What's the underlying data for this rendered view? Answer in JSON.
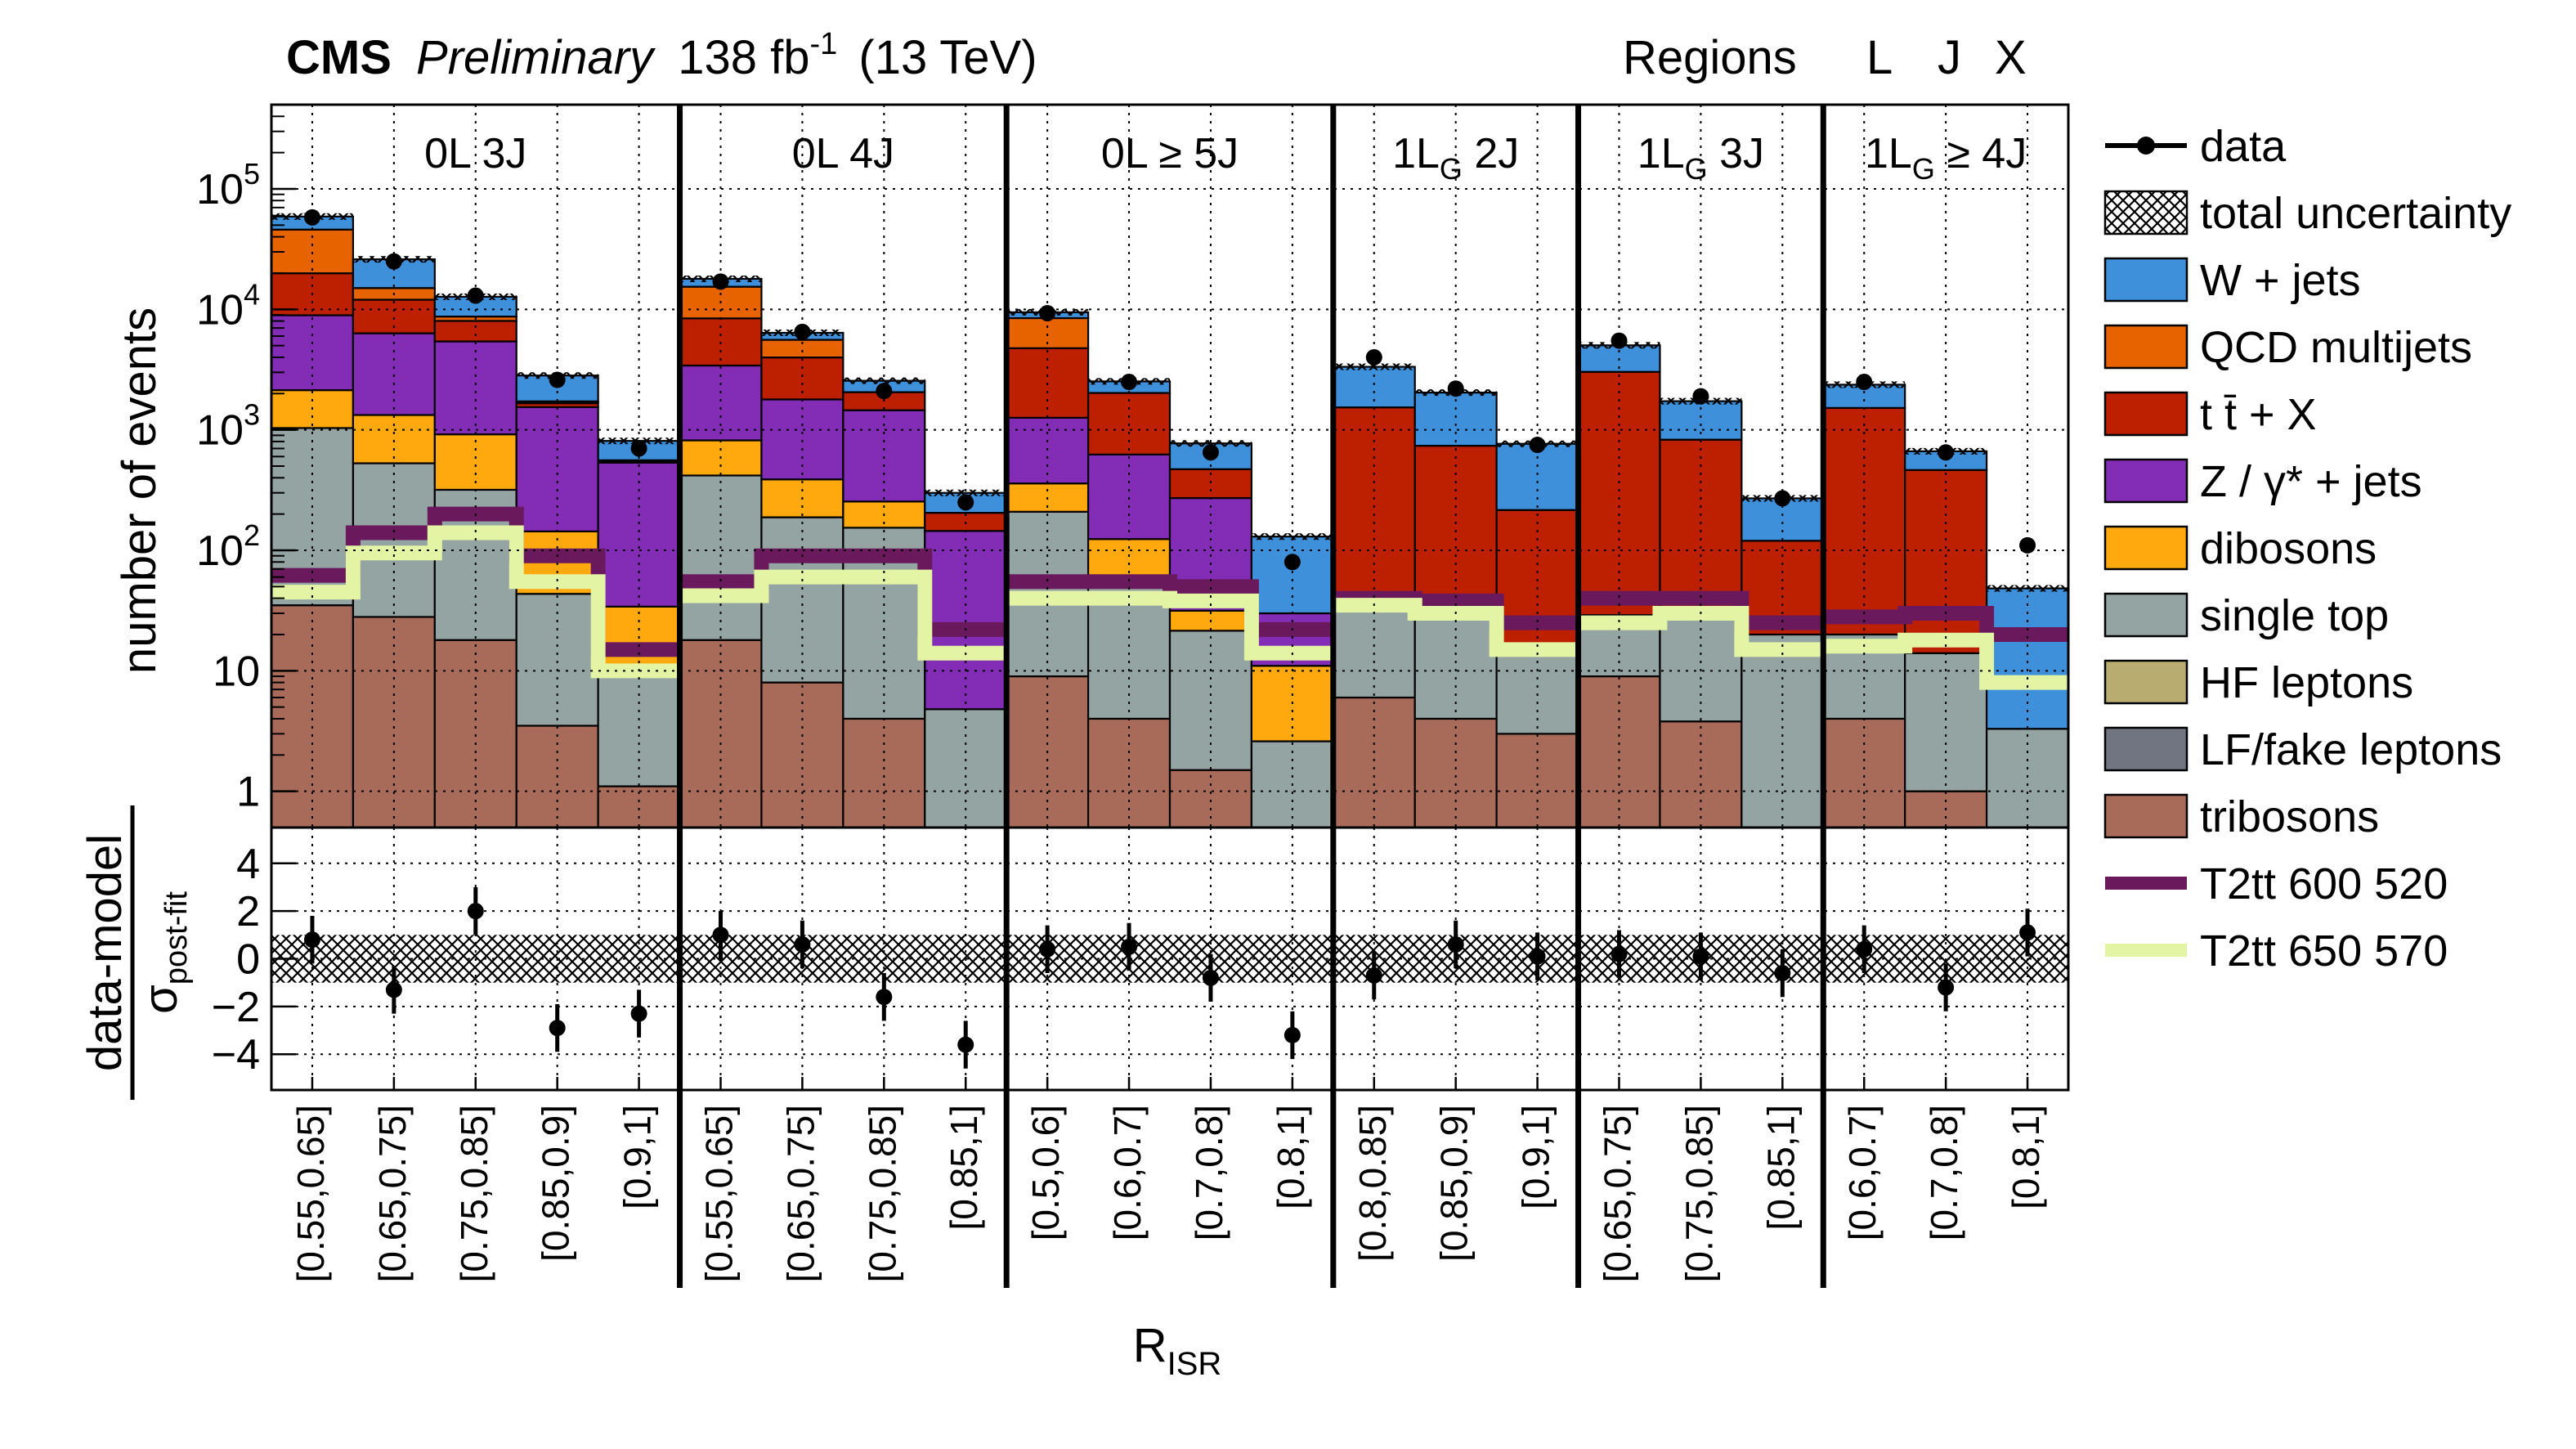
{
  "header": {
    "cms": "CMS",
    "preliminary": "Preliminary",
    "lumi_value": "138 fb",
    "lumi_exp": "-1",
    "energy": "(13 TeV)",
    "regions_label": "Regions",
    "regions_codes": [
      "L",
      "J",
      "X"
    ]
  },
  "axes": {
    "ylabel_top": "number of events",
    "ylabel_bottom_num": "data-model",
    "ylabel_bottom_den_main": "σ",
    "ylabel_bottom_den_sub": "post-fit",
    "xlabel_main": "R",
    "xlabel_sub": "ISR"
  },
  "legend": [
    {
      "key": "data",
      "label": "data",
      "kind": "marker",
      "color": "#000000"
    },
    {
      "key": "unc",
      "label": "total uncertainty",
      "kind": "hatch",
      "color": "#000000"
    },
    {
      "key": "wjets",
      "label": "W + jets",
      "kind": "fill",
      "color": "#3f90da"
    },
    {
      "key": "qcd",
      "label": "QCD multijets",
      "kind": "fill",
      "color": "#e76300"
    },
    {
      "key": "ttx",
      "label": "t t̄ + X",
      "kind": "fill",
      "color": "#bd1f01"
    },
    {
      "key": "zjets",
      "label": "Z / γ* + jets",
      "kind": "fill",
      "color": "#832db6"
    },
    {
      "key": "dibosons",
      "label": "dibosons",
      "kind": "fill",
      "color": "#ffa90e"
    },
    {
      "key": "singletop",
      "label": "single top",
      "kind": "fill",
      "color": "#94a4a2"
    },
    {
      "key": "hf",
      "label": "HF leptons",
      "kind": "fill",
      "color": "#b9ac70"
    },
    {
      "key": "lf",
      "label": "LF/fake leptons",
      "kind": "fill",
      "color": "#717581"
    },
    {
      "key": "tribosons",
      "label": "tribosons",
      "kind": "fill",
      "color": "#a96b59"
    },
    {
      "key": "sig1",
      "label": "T2tt 600 520",
      "kind": "line",
      "color": "#6a1a5c"
    },
    {
      "key": "sig2",
      "label": "T2tt 650 570",
      "kind": "line",
      "color": "#e3f5a4"
    }
  ],
  "chart_data": {
    "type": "bar",
    "stacked": true,
    "y_scale": "log",
    "ylim": [
      0.5,
      500000
    ],
    "y_ticks": [
      {
        "v": 1,
        "l": "1"
      },
      {
        "v": 10,
        "l": "10"
      },
      {
        "v": 100,
        "l": "10",
        "e": "2"
      },
      {
        "v": 1000,
        "l": "10",
        "e": "3"
      },
      {
        "v": 10000,
        "l": "10",
        "e": "4"
      },
      {
        "v": 100000,
        "l": "10",
        "e": "5"
      }
    ],
    "ratio_ylim": [
      -5.5,
      5.5
    ],
    "ratio_ticks": [
      -4,
      -2,
      0,
      2,
      4
    ],
    "ratio_uncertainty_band": [
      -1,
      1
    ],
    "grid": true,
    "legend_position": "right",
    "stack_order": [
      "tribosons",
      "lf",
      "hf",
      "singletop",
      "dibosons",
      "zjets",
      "ttx",
      "qcd",
      "wjets"
    ],
    "regions": [
      {
        "name": "0L 3J",
        "bins": [
          "[0.55,0.65]",
          "[0.65,0.75]",
          "[0.75,0.85]",
          "[0.85,0.9]",
          "[0.9,1]"
        ],
        "stack": {
          "tribosons": [
            35,
            28,
            18,
            3.5,
            1.1
          ],
          "lf": [
            0,
            0,
            0,
            0,
            0
          ],
          "hf": [
            0,
            0,
            0,
            0,
            0
          ],
          "singletop": [
            1000,
            500,
            300,
            40,
            8
          ],
          "dibosons": [
            1100,
            800,
            600,
            100,
            25
          ],
          "zjets": [
            6800,
            5000,
            4500,
            1400,
            500
          ],
          "ttx": [
            11000,
            5700,
            2600,
            120,
            15
          ],
          "qcd": [
            26000,
            3000,
            700,
            60,
            10
          ],
          "wjets": [
            13000,
            11000,
            4000,
            1100,
            250
          ]
        },
        "data": [
          58000,
          25000,
          13000,
          2600,
          700
        ],
        "sig1": [
          62,
          140,
          200,
          90,
          15
        ],
        "sig2": [
          45,
          95,
          140,
          55,
          10
        ],
        "pull": [
          0.8,
          -1.3,
          2.0,
          -2.9,
          -2.3
        ]
      },
      {
        "name": "0L 4J",
        "bins": [
          "[0.55,0.65]",
          "[0.65,0.75]",
          "[0.75,0.85]",
          "[0.85,1]"
        ],
        "stack": {
          "tribosons": [
            18,
            8,
            4,
            0
          ],
          "lf": [
            0,
            0,
            0,
            0
          ],
          "hf": [
            0,
            0,
            0,
            0
          ],
          "singletop": [
            400,
            180,
            150,
            4.8
          ],
          "dibosons": [
            400,
            200,
            100,
            0
          ],
          "zjets": [
            2600,
            1400,
            1200,
            140
          ],
          "ttx": [
            5000,
            2200,
            600,
            60
          ],
          "qcd": [
            7000,
            1600,
            0,
            0
          ],
          "wjets": [
            2500,
            800,
            500,
            95
          ]
        },
        "data": [
          17000,
          6500,
          2100,
          250
        ],
        "sig1": [
          55,
          90,
          90,
          22
        ],
        "sig2": [
          42,
          60,
          60,
          14
        ],
        "pull": [
          1.0,
          0.6,
          -1.6,
          -3.6
        ]
      },
      {
        "name": "0L ≥ 5J",
        "bins": [
          "[0.5,0.6]",
          "[0.6,0.7]",
          "[0.7,0.8]",
          "[0.8,1]"
        ],
        "stack": {
          "tribosons": [
            9,
            4,
            1.5,
            0
          ],
          "lf": [
            0,
            0,
            0,
            0
          ],
          "hf": [
            0,
            0,
            0,
            0
          ],
          "singletop": [
            200,
            50,
            20,
            2.6
          ],
          "dibosons": [
            150,
            70,
            10,
            8.4
          ],
          "zjets": [
            900,
            500,
            240,
            19
          ],
          "ttx": [
            3500,
            1400,
            200,
            0
          ],
          "qcd": [
            3700,
            0,
            0,
            0
          ],
          "wjets": [
            1000,
            500,
            300,
            100
          ]
        },
        "data": [
          9300,
          2500,
          650,
          80
        ],
        "sig1": [
          55,
          55,
          50,
          22
        ],
        "sig2": [
          40,
          40,
          38,
          14
        ],
        "pull": [
          0.4,
          0.5,
          -0.8,
          -3.2
        ]
      },
      {
        "name": "1L_G 2J",
        "bins": [
          "[0.8,0.85]",
          "[0.85,0.9]",
          "[0.9,1]"
        ],
        "stack": {
          "tribosons": [
            6,
            4,
            3
          ],
          "lf": [
            0,
            0,
            0
          ],
          "hf": [
            0,
            0,
            0
          ],
          "singletop": [
            30,
            34,
            13
          ],
          "dibosons": [
            0,
            0,
            0
          ],
          "zjets": [
            0,
            0,
            0
          ],
          "ttx": [
            1500,
            700,
            200
          ],
          "qcd": [
            0,
            0,
            0
          ],
          "wjets": [
            1800,
            1300,
            550
          ]
        },
        "data": [
          4000,
          2200,
          750
        ],
        "sig1": [
          40,
          38,
          25
        ],
        "sig2": [
          35,
          30,
          15
        ],
        "pull": [
          -0.7,
          0.6,
          0.1
        ]
      },
      {
        "name": "1L_G 3J",
        "bins": [
          "[0.65,0.75]",
          "[0.75,0.85]",
          "[0.85,1]"
        ],
        "stack": {
          "tribosons": [
            9,
            3.8,
            0
          ],
          "lf": [
            0,
            0,
            0
          ],
          "hf": [
            0,
            0,
            0
          ],
          "singletop": [
            20,
            25,
            20
          ],
          "dibosons": [
            0,
            0,
            0
          ],
          "zjets": [
            0,
            0,
            0
          ],
          "ttx": [
            3000,
            800,
            100
          ],
          "qcd": [
            0,
            0,
            0
          ],
          "wjets": [
            2000,
            900,
            150
          ]
        },
        "data": [
          5500,
          1900,
          270
        ],
        "sig1": [
          40,
          40,
          25
        ],
        "sig2": [
          25,
          30,
          15
        ],
        "pull": [
          0.2,
          0.1,
          -0.6
        ]
      },
      {
        "name": "1L_G ≥ 4J",
        "bins": [
          "[0.6,0.7]",
          "[0.7,0.8]",
          "[0.8,1]"
        ],
        "stack": {
          "tribosons": [
            4,
            1,
            0
          ],
          "lf": [
            0,
            0,
            0
          ],
          "hf": [
            0,
            0,
            0
          ],
          "singletop": [
            16,
            13,
            3.3
          ],
          "dibosons": [
            0,
            0,
            0
          ],
          "zjets": [
            0,
            0,
            0
          ],
          "ttx": [
            1500,
            450,
            0
          ],
          "qcd": [
            0,
            0,
            0
          ],
          "wjets": [
            850,
            200,
            45
          ]
        },
        "data": [
          2500,
          650,
          110
        ],
        "sig1": [
          28,
          30,
          20
        ],
        "sig2": [
          16,
          18,
          8
        ],
        "pull": [
          0.4,
          -1.2,
          1.1
        ]
      }
    ]
  }
}
